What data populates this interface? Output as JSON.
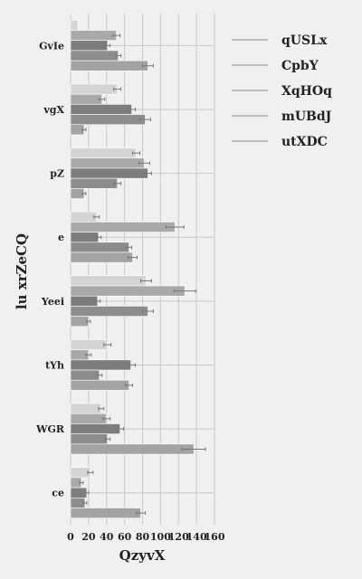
{
  "chart_data": {
    "type": "bar",
    "orientation": "horizontal",
    "xlabel": "QzyvX",
    "ylabel": "lu xrZeCQ",
    "xlim": [
      0,
      160
    ],
    "xticks": [
      0,
      20,
      40,
      60,
      80,
      100,
      120,
      140,
      160
    ],
    "grid": true,
    "legend_position": "top-right",
    "categories": [
      "GvIe",
      "vgX",
      "pZ",
      "e",
      "Yeei",
      "tYh",
      "WGR",
      "ce"
    ],
    "series": [
      {
        "name": "qUSLx",
        "color": "#d4d4d4",
        "values": [
          8,
          52,
          73,
          29,
          84,
          41,
          34,
          22
        ],
        "errors": [
          0,
          4,
          4,
          3,
          6,
          4,
          3,
          3
        ]
      },
      {
        "name": "CpbY",
        "color": "#a9a9a9",
        "values": [
          51,
          35,
          82,
          116,
          127,
          20,
          40,
          12
        ],
        "errors": [
          4,
          3,
          6,
          10,
          12,
          3,
          4,
          2
        ]
      },
      {
        "name": "XqHOq",
        "color": "#7d7d7d",
        "values": [
          41,
          68,
          86,
          31,
          30,
          67,
          55,
          18
        ],
        "errors": [
          3,
          4,
          4,
          3,
          3,
          5,
          4,
          2
        ]
      },
      {
        "name": "mUBdJ",
        "color": "#8d8d8d",
        "values": [
          53,
          83,
          52,
          65,
          86,
          32,
          41,
          16
        ],
        "errors": [
          3,
          6,
          4,
          3,
          6,
          3,
          3,
          2
        ]
      },
      {
        "name": "utXDC",
        "color": "#a3a3a3",
        "values": [
          86,
          15,
          15,
          69,
          20,
          65,
          137,
          78
        ],
        "errors": [
          6,
          2,
          2,
          5,
          2,
          4,
          13,
          5
        ]
      }
    ]
  }
}
